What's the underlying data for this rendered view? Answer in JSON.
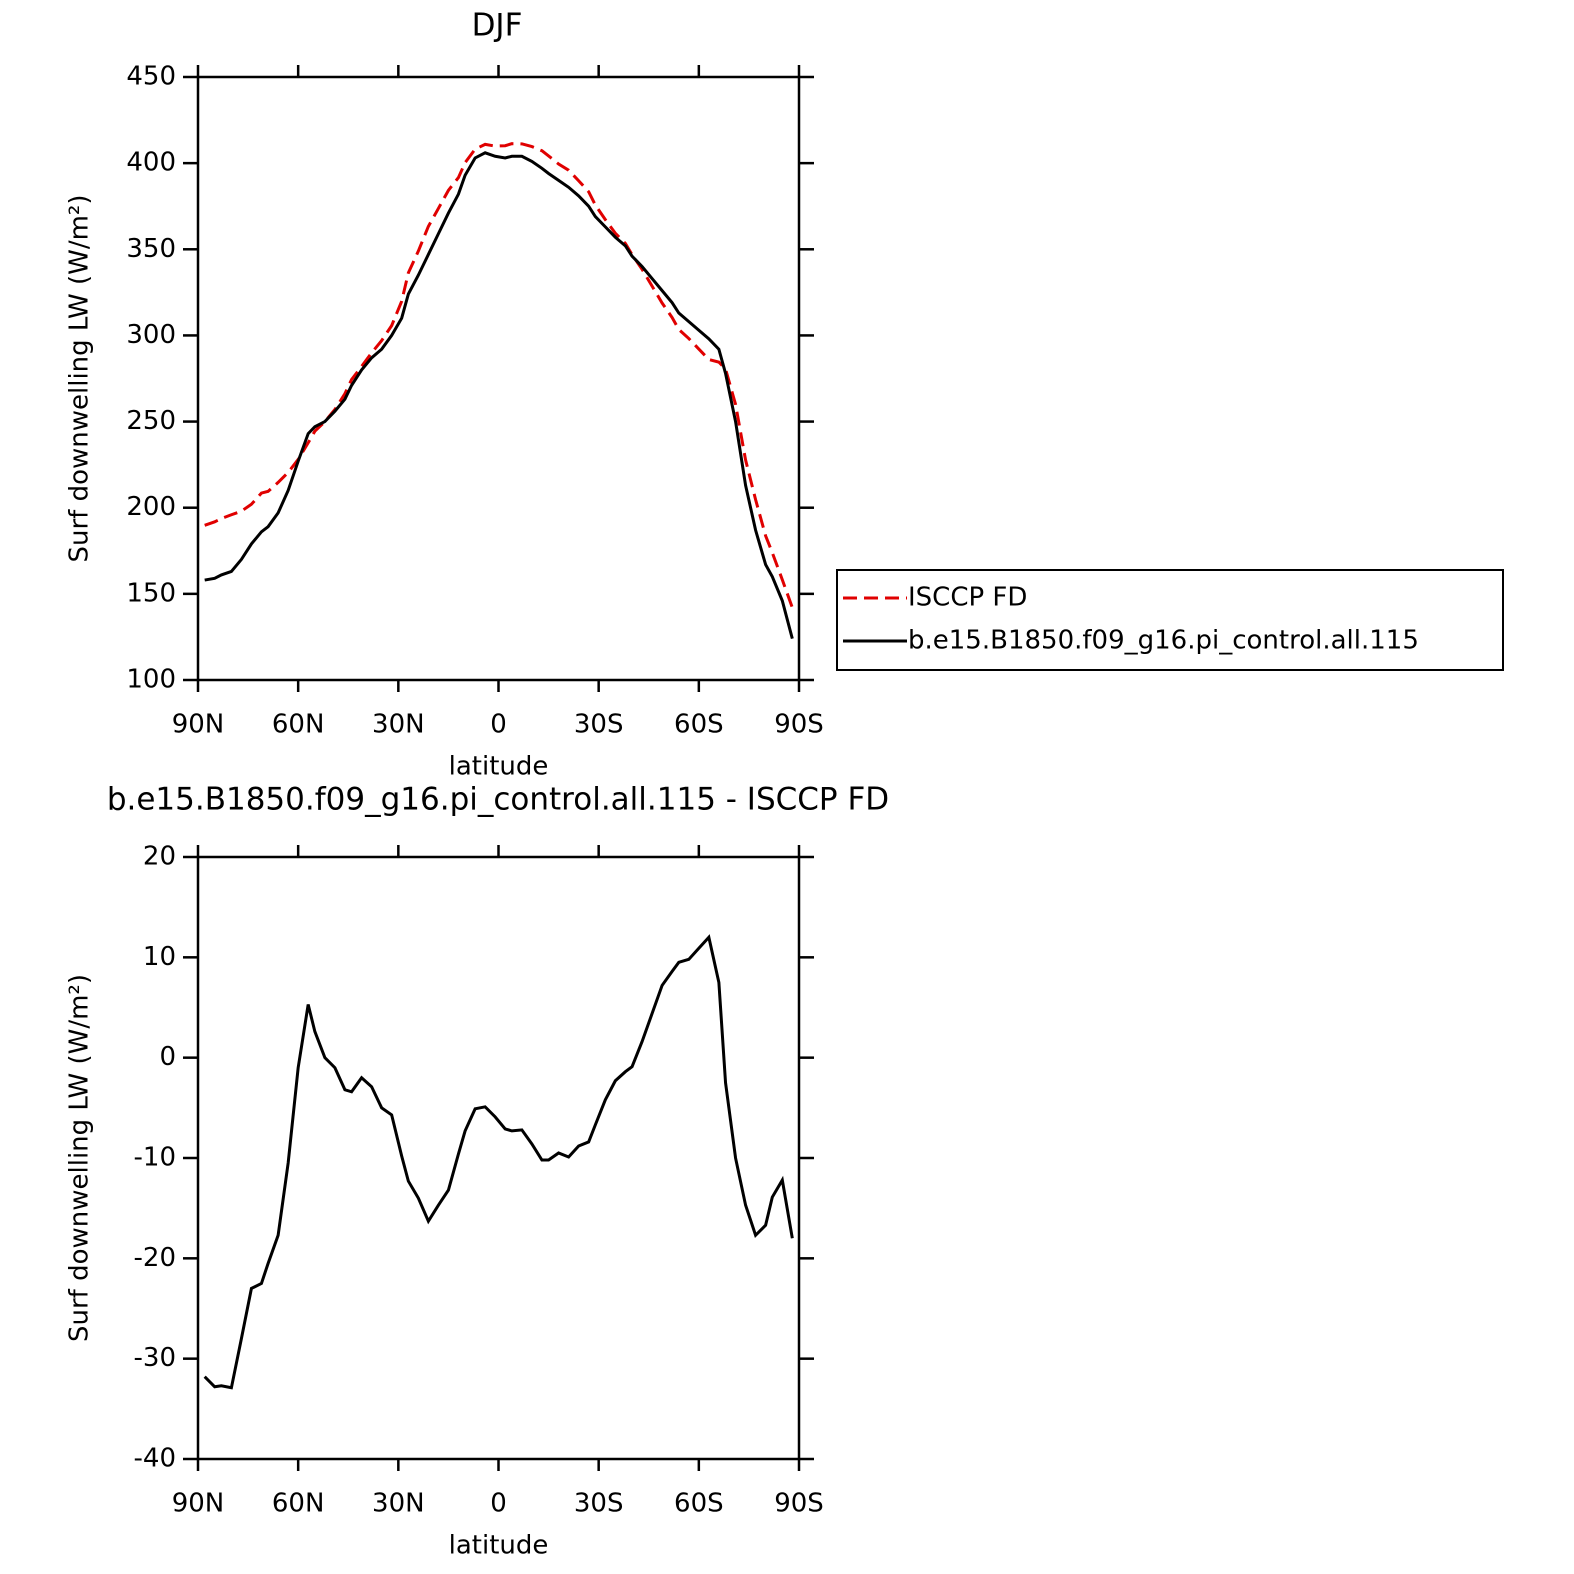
{
  "chart_data": [
    {
      "type": "line",
      "title": "DJF",
      "xlabel": "latitude",
      "ylabel": "Surf downwelling LW (W/m²)",
      "x": [
        88,
        85,
        83,
        80,
        77,
        74,
        71,
        69,
        66,
        63,
        60,
        57,
        55,
        52,
        49,
        46,
        44,
        41,
        38,
        35,
        32,
        29,
        27,
        24,
        21,
        18,
        15,
        12,
        10,
        7,
        4,
        1,
        -2,
        -4,
        -7,
        -10,
        -13,
        -15,
        -18,
        -21,
        -24,
        -27,
        -29,
        -32,
        -35,
        -38,
        -40,
        -43,
        -46,
        -49,
        -52,
        -54,
        -57,
        -60,
        -63,
        -66,
        -68,
        -71,
        -74,
        -77,
        -80,
        -82,
        -85,
        -88
      ],
      "xlim": [
        90,
        -90
      ],
      "xticks": [
        {
          "value": 90,
          "label": "90N"
        },
        {
          "value": 60,
          "label": "60N"
        },
        {
          "value": 30,
          "label": "30N"
        },
        0,
        {
          "value": -30,
          "label": "30S"
        },
        {
          "value": -60,
          "label": "60S"
        },
        {
          "value": -90,
          "label": "90S"
        }
      ],
      "ylim": [
        100,
        450
      ],
      "yticks": [
        100,
        150,
        200,
        250,
        300,
        350,
        400,
        450
      ],
      "legend": "outside right",
      "series": [
        {
          "name": "ISCCP FD",
          "color": "#e00000",
          "line_style": "dashed",
          "values": [
            189.8,
            191.8,
            193.7,
            195.9,
            198,
            202,
            208.5,
            209.5,
            214.7,
            220.5,
            228,
            237.7,
            244.4,
            250,
            257,
            266.2,
            274.4,
            282,
            289.9,
            297,
            305.7,
            319.8,
            336.3,
            349,
            363.3,
            373.7,
            384.2,
            391.6,
            400.3,
            408.1,
            410.9,
            409.9,
            410.1,
            411.3,
            411.2,
            409.6,
            407.2,
            404.2,
            399.5,
            395.9,
            389.8,
            383.4,
            375.7,
            367.2,
            359.3,
            353.4,
            346.9,
            338.4,
            328.6,
            318.8,
            310.4,
            303.5,
            298.2,
            292.1,
            286,
            284.5,
            280.5,
            260,
            227.7,
            204.7,
            183.7,
            173.9,
            158.2,
            142
          ]
        },
        {
          "name": "b.e15.B1850.f09_g16.pi_control.all.115",
          "color": "#000000",
          "line_style": "solid",
          "values": [
            158,
            159,
            161,
            163,
            170,
            179,
            186,
            189,
            197,
            210,
            227,
            243,
            247,
            250,
            256,
            263,
            271,
            280,
            287,
            292,
            300,
            310,
            324,
            335,
            347,
            359,
            371,
            382,
            393,
            403,
            406,
            404,
            403,
            404,
            404,
            401,
            397,
            394,
            390,
            386,
            381,
            375,
            369,
            363,
            357,
            352,
            346,
            340,
            333,
            326,
            319,
            313,
            308,
            303,
            298,
            292,
            278,
            250,
            213,
            187,
            167,
            160,
            146,
            124
          ]
        }
      ]
    },
    {
      "type": "line",
      "title": "b.e15.B1850.f09_g16.pi_control.all.115 - ISCCP FD",
      "xlabel": "latitude",
      "ylabel": "Surf downwelling LW (W/m²)",
      "x": [
        88,
        85,
        83,
        80,
        77,
        74,
        71,
        69,
        66,
        63,
        60,
        57,
        55,
        52,
        49,
        46,
        44,
        41,
        38,
        35,
        32,
        29,
        27,
        24,
        21,
        18,
        15,
        12,
        10,
        7,
        4,
        1,
        -2,
        -4,
        -7,
        -10,
        -13,
        -15,
        -18,
        -21,
        -24,
        -27,
        -29,
        -32,
        -35,
        -38,
        -40,
        -43,
        -46,
        -49,
        -52,
        -54,
        -57,
        -60,
        -63,
        -66,
        -68,
        -71,
        -74,
        -77,
        -80,
        -82,
        -85,
        -88
      ],
      "xlim": [
        90,
        -90
      ],
      "xticks": [
        {
          "value": 90,
          "label": "90N"
        },
        {
          "value": 60,
          "label": "60N"
        },
        {
          "value": 30,
          "label": "30N"
        },
        0,
        {
          "value": -30,
          "label": "30S"
        },
        {
          "value": -60,
          "label": "60S"
        },
        {
          "value": -90,
          "label": "90S"
        }
      ],
      "ylim": [
        -40,
        20
      ],
      "yticks": [
        -40,
        -30,
        -20,
        -10,
        0,
        10,
        20
      ],
      "color": "#000000",
      "values": [
        -31.8,
        -32.8,
        -32.7,
        -32.9,
        -28,
        -23,
        -22.5,
        -20.5,
        -17.7,
        -10.5,
        -1,
        5.3,
        2.6,
        0,
        -1,
        -3.2,
        -3.4,
        -2,
        -2.9,
        -5,
        -5.7,
        -9.8,
        -12.3,
        -14,
        -16.3,
        -14.7,
        -13.2,
        -9.6,
        -7.3,
        -5.1,
        -4.9,
        -5.9,
        -7.1,
        -7.3,
        -7.2,
        -8.6,
        -10.2,
        -10.2,
        -9.5,
        -9.9,
        -8.8,
        -8.4,
        -6.7,
        -4.2,
        -2.3,
        -1.4,
        -0.9,
        1.6,
        4.4,
        7.2,
        8.6,
        9.5,
        9.8,
        10.9,
        12,
        7.5,
        -2.5,
        -10,
        -14.7,
        -17.7,
        -16.7,
        -13.9,
        -12.2,
        -18
      ]
    }
  ]
}
